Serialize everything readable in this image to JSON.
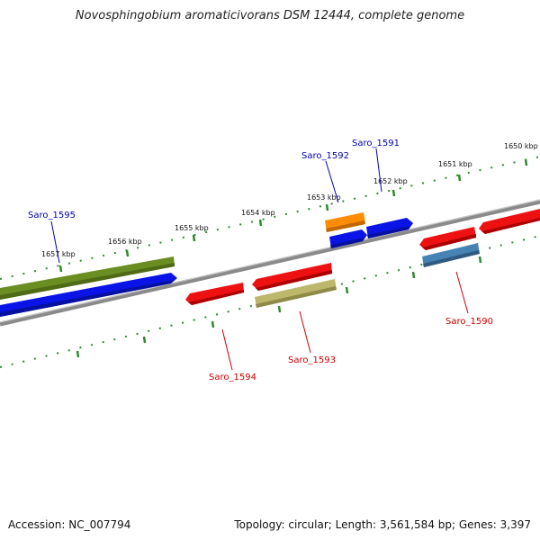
{
  "title": "Novosphingobium aromaticivorans DSM 12444, complete genome",
  "footer": {
    "accession": "Accession: NC_007794",
    "summary": "Topology: circular; Length: 3,561,584 bp; Genes: 3,397"
  },
  "ruler_labels": [
    "1650 kbp",
    "1651 kbp",
    "1652 kbp",
    "1653 kbp",
    "1654 kbp",
    "1655 kbp",
    "1656 kbp",
    "1657 kbp"
  ],
  "gene_labels": [
    {
      "text": "Saro_1591",
      "color": "#0000b0"
    },
    {
      "text": "Saro_1592",
      "color": "#0000b0"
    },
    {
      "text": "Saro_1595",
      "color": "#0000b0"
    },
    {
      "text": "Saro_1590",
      "color": "#cc0000"
    },
    {
      "text": "Saro_1593",
      "color": "#cc0000"
    },
    {
      "text": "Saro_1594",
      "color": "#cc0000"
    }
  ],
  "colors": {
    "backbone": "#8a8a8a",
    "ruler_ticks": "#2e8b2e",
    "gene_red": "#ee1111",
    "gene_blue": "#0a14e6",
    "gene_olive": "#6b8e23",
    "gene_orange": "#ff8c00",
    "gene_khaki": "#bdb76b",
    "gene_steelblue": "#4682b4"
  }
}
